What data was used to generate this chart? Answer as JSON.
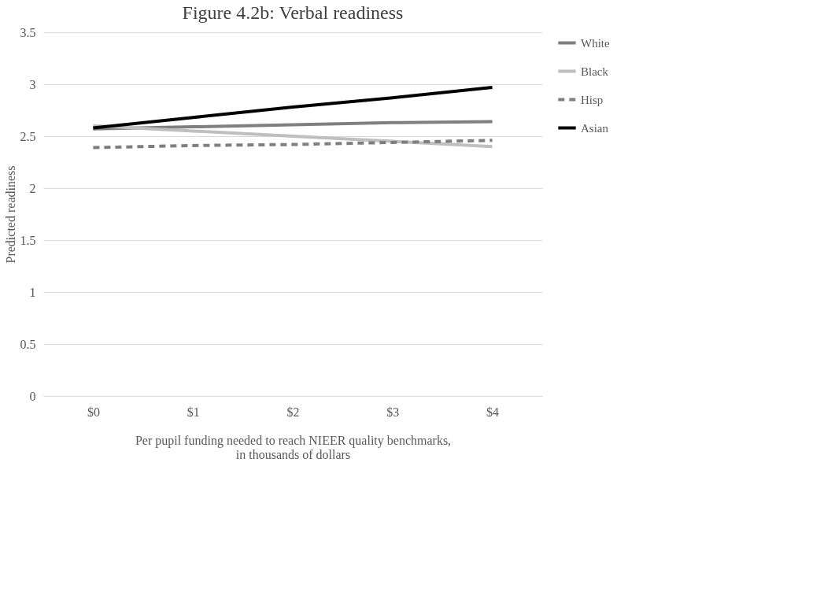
{
  "chart_data": {
    "type": "line",
    "title": "Figure 4.2b: Verbal readiness",
    "xlabel": "Per pupil funding needed to reach NIEER quality benchmarks,\nin thousands of dollars",
    "ylabel": "Predicted readiness",
    "categories": [
      "$0",
      "$1",
      "$2",
      "$3",
      "$4"
    ],
    "series": [
      {
        "name": "White",
        "color": "#7f7f7f",
        "line_style": "solid",
        "values": [
          2.57,
          2.59,
          2.61,
          2.63,
          2.64
        ]
      },
      {
        "name": "Black",
        "color": "#bfbfbf",
        "line_style": "solid",
        "values": [
          2.6,
          2.55,
          2.5,
          2.45,
          2.4
        ]
      },
      {
        "name": "Hisp",
        "color": "#7f7f7f",
        "line_style": "dashed",
        "values": [
          2.39,
          2.41,
          2.42,
          2.44,
          2.46
        ]
      },
      {
        "name": "Asian",
        "color": "#000000",
        "line_style": "solid",
        "values": [
          2.58,
          2.68,
          2.78,
          2.87,
          2.97
        ]
      }
    ],
    "ylim": [
      0,
      3.5
    ],
    "yticks": [
      0,
      0.5,
      1,
      1.5,
      2,
      2.5,
      3,
      3.5
    ],
    "grid": "y",
    "legend": "right",
    "marker": "none"
  }
}
